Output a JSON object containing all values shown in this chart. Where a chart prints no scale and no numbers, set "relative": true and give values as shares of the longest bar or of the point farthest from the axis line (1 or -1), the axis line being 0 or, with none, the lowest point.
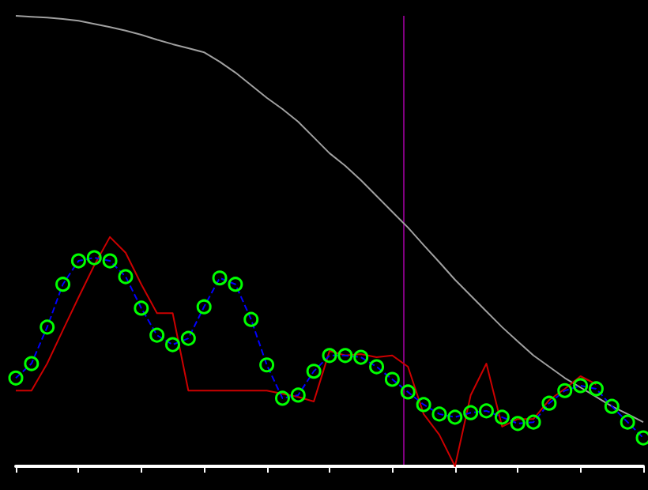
{
  "chart_data": {
    "type": "line",
    "relative": true,
    "grid": false,
    "marker": "none",
    "categories": [
      null,
      null,
      null,
      null,
      null,
      null,
      null,
      null,
      null,
      null,
      null,
      null,
      null,
      null,
      null,
      null,
      null,
      null,
      null,
      null,
      null,
      null,
      null,
      null,
      null,
      null,
      null,
      null,
      null,
      null,
      null,
      null,
      null,
      null,
      null,
      null,
      null,
      null,
      null,
      null,
      null
    ],
    "series": [
      {
        "color": "#a0a0a0",
        "line_style": "solid",
        "values": [
          1.0,
          0.998,
          0.996,
          0.993,
          0.989,
          0.982,
          0.975,
          0.967,
          0.958,
          0.947,
          0.937,
          0.928,
          0.919,
          0.898,
          0.874,
          0.846,
          0.818,
          0.793,
          0.765,
          0.73,
          0.695,
          0.667,
          0.635,
          0.6,
          0.565,
          0.53,
          0.491,
          0.453,
          0.414,
          0.379,
          0.344,
          0.309,
          0.277,
          0.246,
          0.221,
          0.196,
          0.175,
          0.154,
          0.133,
          0.116,
          0.098
        ]
      },
      {
        "color": "#cc0000",
        "line_style": "solid",
        "values": [
          0.168,
          0.168,
          0.228,
          0.302,
          0.375,
          0.446,
          0.509,
          0.474,
          0.404,
          0.34,
          0.34,
          0.168,
          0.168,
          0.168,
          0.168,
          0.168,
          0.168,
          0.161,
          0.154,
          0.144,
          0.256,
          0.246,
          0.249,
          0.242,
          0.246,
          0.221,
          0.116,
          0.07,
          0,
          0.158,
          0.228,
          0.088,
          0.105,
          0.105,
          0.147,
          0.172,
          0.2,
          0.182,
          null,
          null,
          null
        ]
      },
      {
        "color": "#0000ff",
        "line_style": "dashed",
        "marker": "circle",
        "colors": [
          "#00ff00",
          "#00ff00",
          "#00ff00",
          "#00ff00",
          "#00ff00",
          "#00ff00",
          "#00ff00",
          "#00ff00",
          "#00ff00",
          "#00ff00",
          "#00ff00",
          "#00ff00",
          "#00ff00",
          "#00ff00",
          "#00ff00",
          "#00ff00",
          "#00ff00",
          "#00ff00",
          "#00ff00",
          "#00ff00",
          "#00ff00",
          "#00ff00",
          "#00ff00",
          "#00ff00",
          "#00ff00",
          "#00ff00",
          "#00ff00",
          "#00ff00",
          "#00ff00",
          "#00ff00",
          "#00ff00",
          "#00ff00",
          "#00ff00",
          "#00ff00",
          "#00ff00",
          "#00ff00",
          "#00ff00",
          "#00ff00",
          "#00ff00",
          "#00ff00",
          "#00ff00"
        ],
        "values": [
          0.196,
          0.228,
          0.309,
          0.404,
          0.456,
          0.463,
          0.456,
          0.421,
          0.351,
          0.291,
          0.27,
          0.284,
          0.354,
          0.418,
          0.404,
          0.326,
          0.225,
          0.151,
          0.158,
          0.211,
          0.246,
          0.246,
          0.242,
          0.221,
          0.193,
          0.165,
          0.137,
          0.116,
          0.109,
          0.119,
          0.123,
          0.109,
          0.095,
          0.098,
          0.14,
          0.168,
          0.179,
          0.172,
          0.133,
          0.098,
          0.063
        ]
      }
    ]
  }
}
